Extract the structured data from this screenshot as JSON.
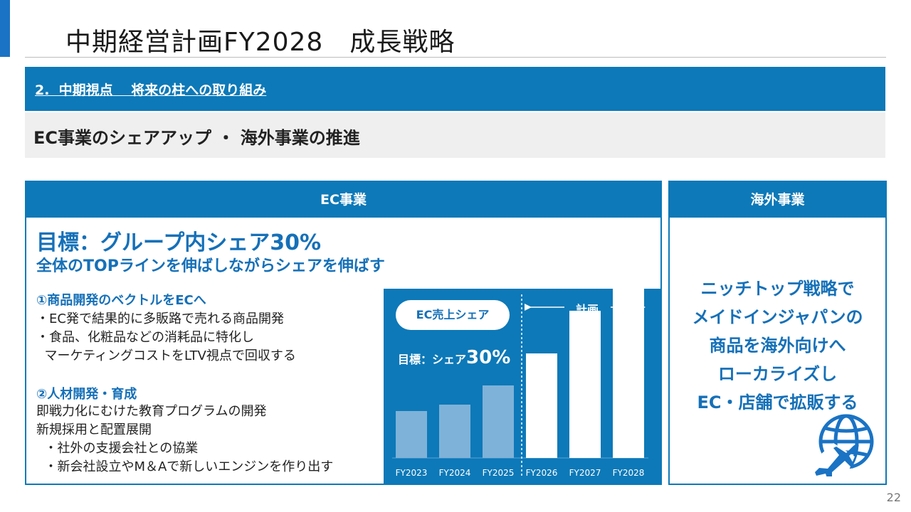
{
  "page": {
    "title": "中期経営計画FY2028　成長戦略",
    "section_label": "2.  中期視点　 将来の柱への取り組み",
    "subtitle": "EC事業のシェアアップ ・ 海外事業の推進",
    "page_number": "22"
  },
  "ec": {
    "header": "EC事業",
    "goal_line1": "目標：グループ内シェア30%",
    "goal_line2": "全体のTOPラインを伸ばしながらシェアを伸ばす",
    "item1_title": "①商品開発のベクトルをECへ",
    "item1_body": "・EC発で結果的に多販路で売れる商品開発\n・食品、化粧品などの消耗品に特化し\n  マーケティングコストをLTV視点で回収する",
    "item2_title": "②人材開発・育成",
    "item2_body": "即戦力化にむけた教育プログラムの開発\n新規採用と配置展開\n  ・社外の支援会社との協業\n  ・新会社設立やM＆Aで新しいエンジンを作り出す"
  },
  "overseas": {
    "header": "海外事業",
    "body": "ニッチトップ戦略で\nメイドインジャパンの\n商品を海外向けへ\nローカライズし\nEC・店舗で拡販する",
    "icon": "globe-airplane-icon"
  },
  "chart_data": {
    "type": "bar",
    "title": "EC売上シェア",
    "target_prefix": "目標：シェア",
    "target_value": "30%",
    "plan_label": "計画",
    "categories": [
      "FY2023",
      "FY2024",
      "FY2025",
      "FY2026",
      "FY2027",
      "FY2028"
    ],
    "values": [
      0.22,
      0.25,
      0.34,
      0.49,
      0.69,
      0.86
    ],
    "value_scale": "relative (no axis printed)",
    "actual_count": 3,
    "colors": {
      "actual": "#7fb2d8",
      "plan": "#ffffff",
      "arrow": "#f2c66d",
      "background": "#0d79b8"
    }
  }
}
